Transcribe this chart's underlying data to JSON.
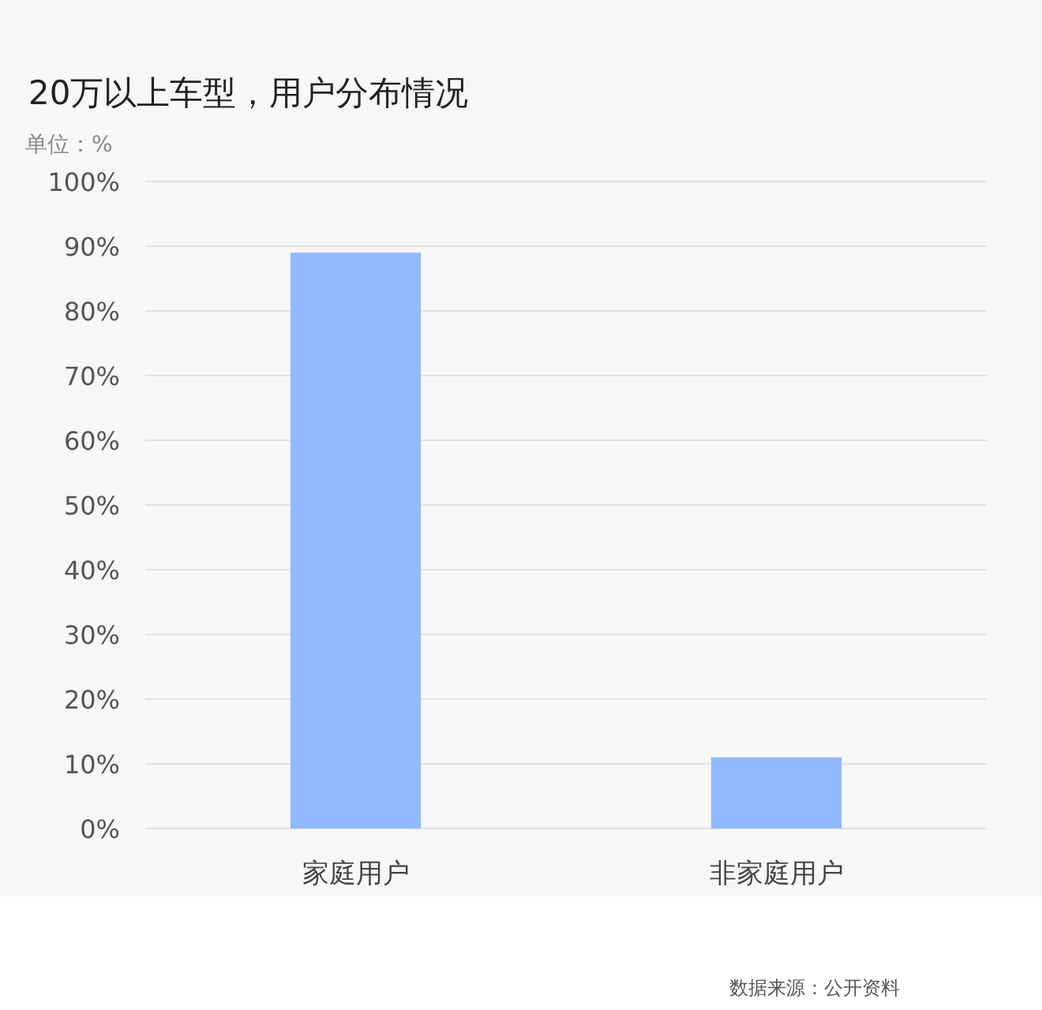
{
  "chart_data": {
    "type": "bar",
    "title": "20万以上车型，用户分布情况",
    "ylabel": "单位：%",
    "categories": [
      "家庭用户",
      "非家庭用户"
    ],
    "values": [
      89,
      11
    ],
    "color": "#92b8fd",
    "ylim": [
      0,
      100
    ],
    "yticks": [
      {
        "value": 0,
        "label": "0%"
      },
      {
        "value": 10,
        "label": "10%"
      },
      {
        "value": 20,
        "label": "20%"
      },
      {
        "value": 30,
        "label": "30%"
      },
      {
        "value": 40,
        "label": "40%"
      },
      {
        "value": 50,
        "label": "50%"
      },
      {
        "value": 60,
        "label": "60%"
      },
      {
        "value": 70,
        "label": "70%"
      },
      {
        "value": 80,
        "label": "80%"
      },
      {
        "value": 90,
        "label": "90%"
      },
      {
        "value": 100,
        "label": "100%"
      }
    ],
    "grid": "y",
    "legend": false,
    "annotations": [
      "数据来源：公开资料"
    ]
  }
}
